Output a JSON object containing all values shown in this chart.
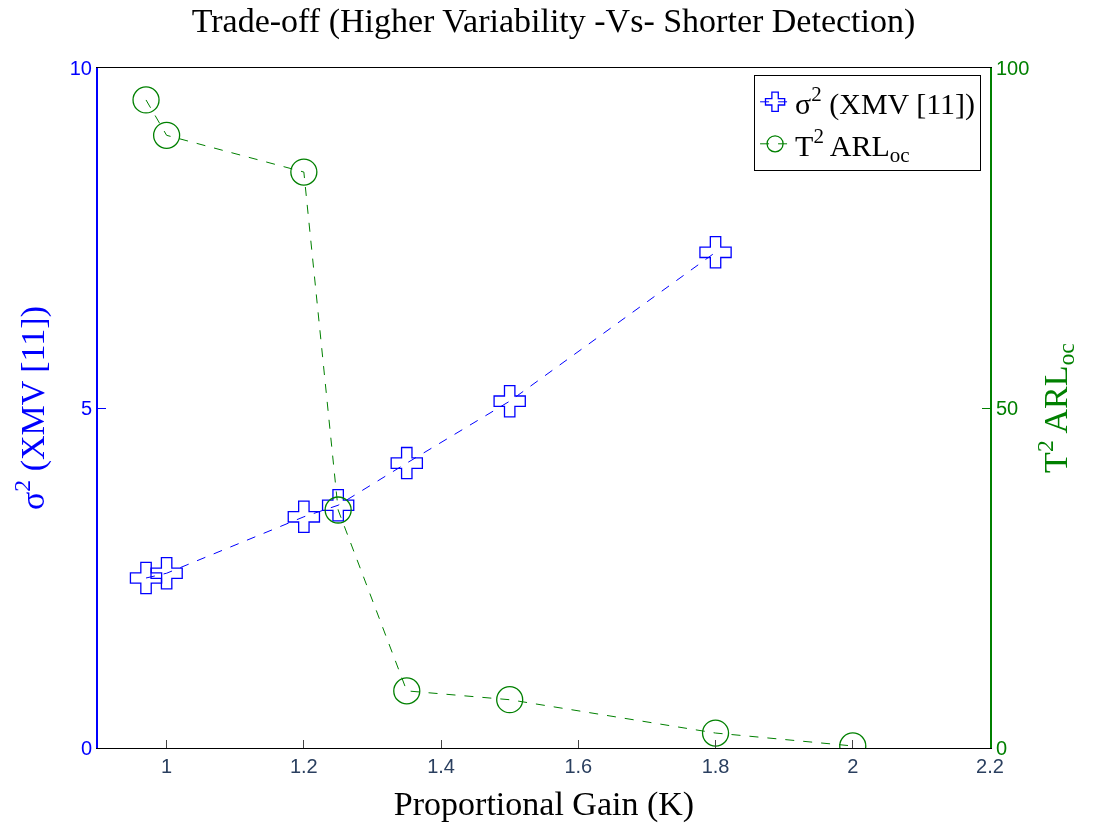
{
  "chart_data": {
    "type": "line",
    "title": "Trade-off (Higher Variability -Vs- Shorter Detection)",
    "xlabel": "Proportional Gain (K)",
    "ylabel": "σ$^{2}$ (XMV [11])",
    "y2label": "T$^{2}$ ARL$_{oc}$",
    "x": [
      0.97,
      1.0,
      1.2,
      1.25,
      1.35,
      1.5,
      1.8,
      2.0
    ],
    "series": [
      {
        "name": "σ$^{2}$ (XMV [11])",
        "color": "#0000ff",
        "marker": "cross",
        "line_style": "dashed",
        "values": [
          2.5,
          2.57,
          3.4,
          3.57,
          4.19,
          5.1,
          7.29,
          null
        ]
      },
      {
        "name": "T$^{2}$ ARL$_{oc}$",
        "color": "#008000",
        "marker": "circle",
        "line_style": "dashed",
        "axis": "y2",
        "values": [
          95.3,
          90.1,
          84.7,
          35.0,
          8.4,
          7.1,
          2.2,
          0.3
        ]
      }
    ],
    "xlim": [
      0.9,
      2.2
    ],
    "xticks": [
      1,
      1.2,
      1.4,
      1.6,
      1.8,
      2,
      2.2
    ],
    "ylim": [
      0,
      10
    ],
    "yticks": [
      0,
      5,
      10
    ],
    "y2lim": [
      0,
      100
    ],
    "y2ticks": [
      0,
      50,
      100
    ],
    "legend": "top right"
  }
}
